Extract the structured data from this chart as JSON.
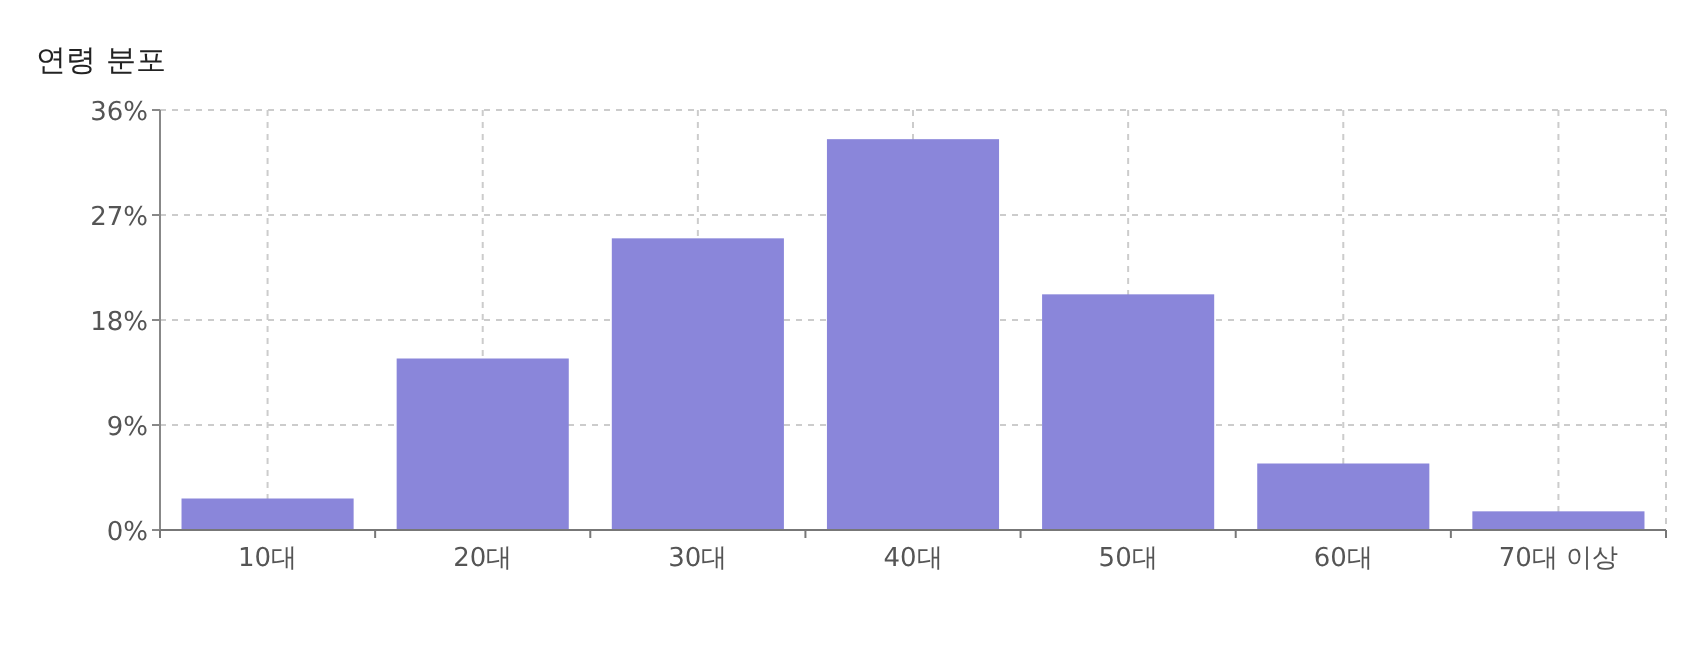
{
  "chart_data": {
    "type": "bar",
    "title": "연령 분포",
    "categories": [
      "10대",
      "20대",
      "30대",
      "40대",
      "50대",
      "60대",
      "70대 이상"
    ],
    "values": [
      2.7,
      14.7,
      25.0,
      33.5,
      20.2,
      5.7,
      1.6
    ],
    "color": "#8a86da",
    "ylim": [
      0,
      36
    ],
    "yticks": [
      {
        "value": 0,
        "label": "0%"
      },
      {
        "value": 9,
        "label": "9%"
      },
      {
        "value": 18,
        "label": "18%"
      },
      {
        "value": 27,
        "label": "27%"
      },
      {
        "value": 36,
        "label": "36%"
      }
    ],
    "grid": true
  }
}
